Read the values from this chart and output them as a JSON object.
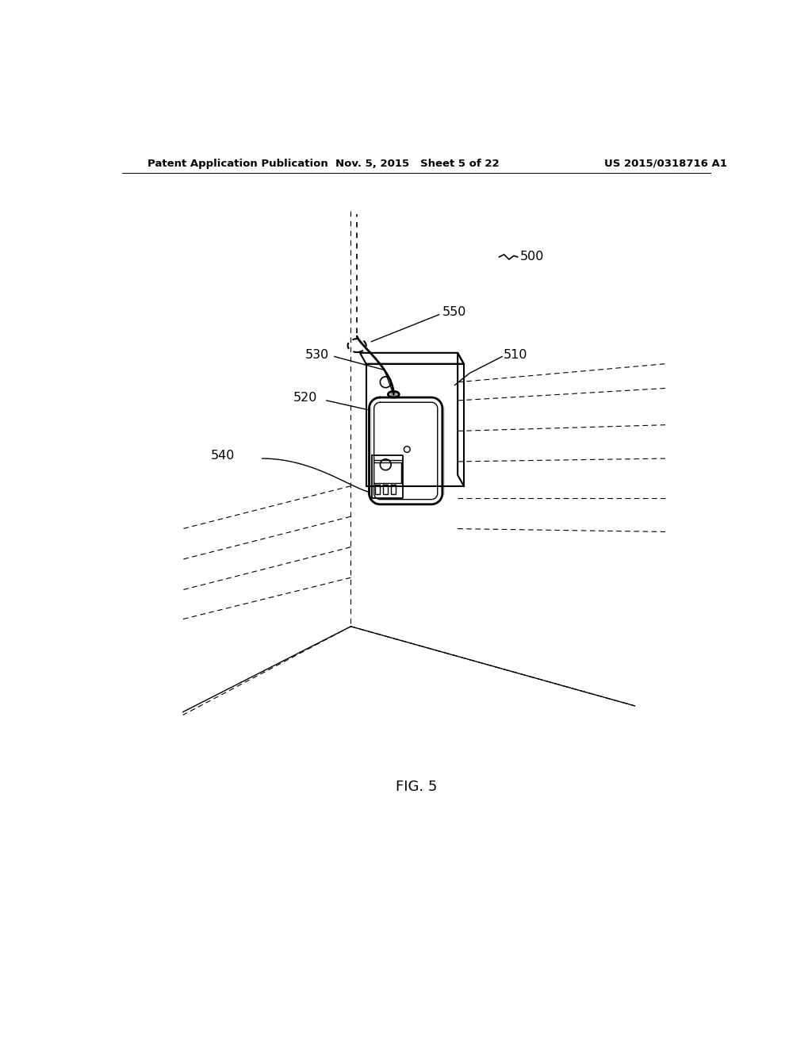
{
  "bg_color": "#ffffff",
  "title_left": "Patent Application Publication",
  "title_center": "Nov. 5, 2015   Sheet 5 of 22",
  "title_right": "US 2015/0318716 A1",
  "fig_label": "FIG. 5",
  "label_500": "500",
  "label_510": "510",
  "label_520": "520",
  "label_530": "530",
  "label_540": "540",
  "label_550": "550",
  "header_fontsize": 9.5,
  "label_fontsize": 11.5,
  "figlabel_fontsize": 13
}
